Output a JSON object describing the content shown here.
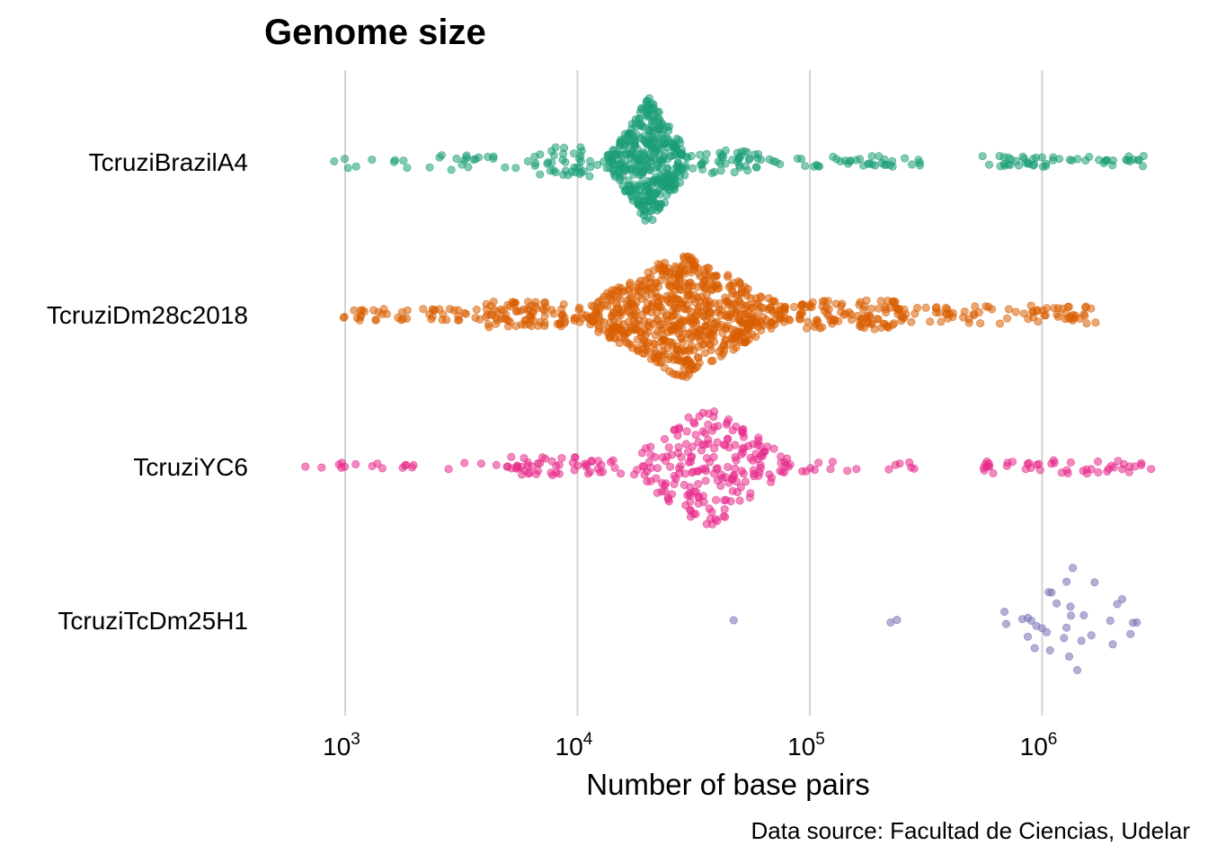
{
  "chart_data": {
    "type": "scatter",
    "subtype": "beeswarm",
    "title": "Genome size",
    "xlabel": "Number of base pairs",
    "ylabel": "",
    "caption": "Data source: Facultad de Ciencias, Udelar",
    "x_scale": "log10",
    "xlim": [
      600,
      3300000
    ],
    "x_ticks": [
      {
        "value": 1000,
        "base": "10",
        "exp": "3"
      },
      {
        "value": 10000,
        "base": "10",
        "exp": "4"
      },
      {
        "value": 100000,
        "base": "10",
        "exp": "5"
      },
      {
        "value": 1000000,
        "base": "10",
        "exp": "6"
      }
    ],
    "grid": "vertical major gridlines",
    "legend": "none",
    "series": [
      {
        "category": "TcruziBrazilA4",
        "color": "#1B9E77",
        "approx_count": 600,
        "min": 700,
        "max": 2800000,
        "mode": 18000,
        "segments": [
          {
            "from": 700,
            "to": 6500,
            "n": 28,
            "spread": 0.25
          },
          {
            "from": 6500,
            "to": 13000,
            "n": 40,
            "spread": 0.45
          },
          {
            "from": 13000,
            "to": 32000,
            "n": 390,
            "spread": 1.0
          },
          {
            "from": 32000,
            "to": 60000,
            "n": 40,
            "spread": 0.35
          },
          {
            "from": 60000,
            "to": 300000,
            "n": 40,
            "spread": 0.18
          },
          {
            "from": 550000,
            "to": 2800000,
            "n": 50,
            "spread": 0.18
          }
        ]
      },
      {
        "category": "TcruziDm28c2018",
        "color": "#D95F02",
        "approx_count": 1000,
        "min": 900,
        "max": 1700000,
        "mode": 30000,
        "segments": [
          {
            "from": 900,
            "to": 4000,
            "n": 45,
            "spread": 0.18
          },
          {
            "from": 4000,
            "to": 9000,
            "n": 80,
            "spread": 0.4
          },
          {
            "from": 9000,
            "to": 90000,
            "n": 700,
            "spread": 1.0
          },
          {
            "from": 90000,
            "to": 250000,
            "n": 100,
            "spread": 0.45
          },
          {
            "from": 250000,
            "to": 1700000,
            "n": 75,
            "spread": 0.28
          }
        ]
      },
      {
        "category": "TcruziYC6",
        "color": "#E7298A",
        "approx_count": 340,
        "min": 650,
        "max": 3000000,
        "mode": 40000,
        "segments": [
          {
            "from": 650,
            "to": 5000,
            "n": 20,
            "spread": 0.12
          },
          {
            "from": 5000,
            "to": 15000,
            "n": 50,
            "spread": 0.3
          },
          {
            "from": 15000,
            "to": 90000,
            "n": 210,
            "spread": 1.0
          },
          {
            "from": 90000,
            "to": 320000,
            "n": 15,
            "spread": 0.15
          },
          {
            "from": 550000,
            "to": 3000000,
            "n": 45,
            "spread": 0.22
          }
        ]
      },
      {
        "category": "TcruziTcDm25H1",
        "color": "#7570B3",
        "approx_count": 36,
        "min": 47000,
        "max": 2900000,
        "mode": 950000,
        "segments": [
          {
            "from": 47000,
            "to": 47000,
            "n": 1,
            "spread": 0.0
          },
          {
            "from": 200000,
            "to": 280000,
            "n": 2,
            "spread": 0.1
          },
          {
            "from": 600000,
            "to": 2900000,
            "n": 33,
            "spread": 1.0
          }
        ]
      }
    ]
  }
}
